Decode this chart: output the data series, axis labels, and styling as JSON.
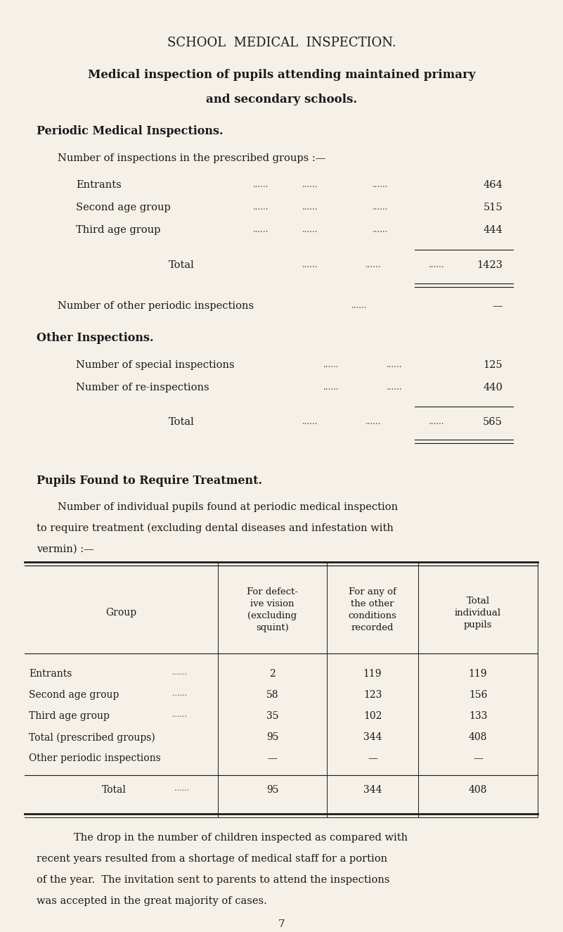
{
  "bg_color": "#f5f0e8",
  "text_color": "#1a1a1a",
  "title": "SCHOOL  MEDICAL  INSPECTION.",
  "subtitle_line1": "Medical inspection of pupils attending maintained primary",
  "subtitle_line2": "and secondary schools.",
  "section1_head": "Periodic Medical Inspections.",
  "section1_intro": "Number of inspections in the prescribed groups :—",
  "section1_items": [
    [
      "Entrants",
      "464"
    ],
    [
      "Second age group",
      "515"
    ],
    [
      "Third age group",
      "444"
    ]
  ],
  "section1_total_label": "Total",
  "section1_total_val": "1423",
  "section1_other_label": "Number of other periodic inspections",
  "section1_other_val": "—",
  "section2_head": "Other Inspections.",
  "section2_items": [
    [
      "Number of special inspections",
      "125"
    ],
    [
      "Number of re-inspections",
      "440"
    ]
  ],
  "section2_total_label": "Total",
  "section2_total_val": "565",
  "section3_head": "Pupils Found to Require Treatment.",
  "section3_intro_line1": "Number of individual pupils found at periodic medical inspection",
  "section3_intro_line2": "to require treatment (excluding dental diseases and infestation with",
  "section3_intro_line3": "vermin) :—",
  "table_col1_header": "Group",
  "table_col2_header": [
    "For defect-",
    "ive vision",
    "(excluding",
    "squint)"
  ],
  "table_col3_header": [
    "For any of",
    "the other",
    "conditions",
    "recorded"
  ],
  "table_col4_header": [
    "Total",
    "individual",
    "pupils"
  ],
  "table_rows": [
    [
      "Entrants",
      "2",
      "119",
      "119"
    ],
    [
      "Second age group",
      "58",
      "123",
      "156"
    ],
    [
      "Third age group",
      "35",
      "102",
      "133"
    ],
    [
      "Total (prescribed groups)",
      "95",
      "344",
      "408"
    ],
    [
      "Other periodic inspections",
      "—",
      "—",
      "—"
    ]
  ],
  "table_total_row": [
    "Total",
    "95",
    "344",
    "408"
  ],
  "footer_line1": "The drop in the number of children inspected as compared with",
  "footer_line2": "recent years resulted from a shortage of medical staff for a portion",
  "footer_line3": "of the year.  The invitation sent to parents to attend the inspections",
  "footer_line4": "was accepted in the great majority of cases.",
  "page_number": "7"
}
